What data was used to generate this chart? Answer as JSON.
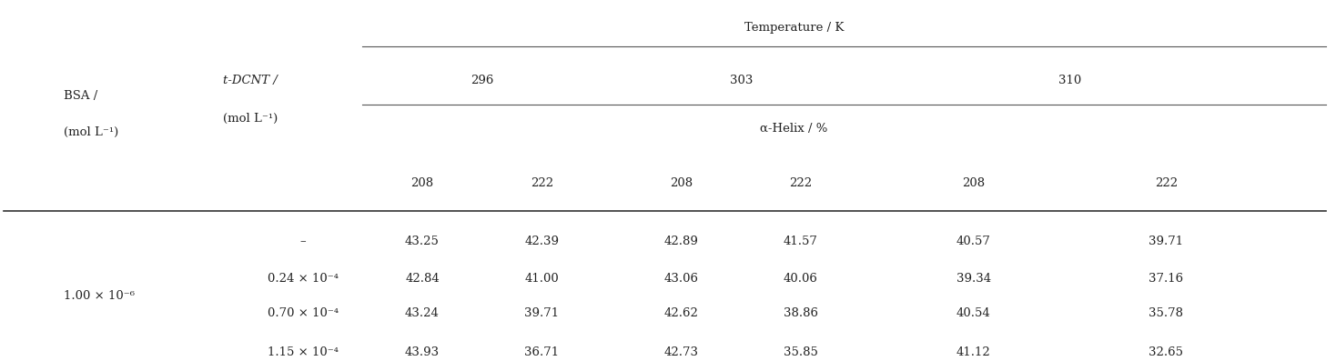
{
  "title": "Temperature / K",
  "temp_labels": [
    "296",
    "303",
    "310"
  ],
  "alpha_helix_label": "α-Helix / %",
  "wl_labels": [
    "208",
    "222",
    "208",
    "222",
    "208",
    "222"
  ],
  "bsa_header_line1": "BSA /",
  "bsa_header_line2": "(mol L⁻¹)",
  "dcnt_header_line1": "t-DCNT /",
  "dcnt_header_line2": "(mol L⁻¹)",
  "bsa_value": "1.00 × 10⁻⁶",
  "rows": [
    {
      "dcnt": "–",
      "values": [
        "43.25",
        "42.39",
        "42.89",
        "41.57",
        "40.57",
        "39.71"
      ]
    },
    {
      "dcnt": "0.24 × 10⁻⁴",
      "values": [
        "42.84",
        "41.00",
        "43.06",
        "40.06",
        "39.34",
        "37.16"
      ]
    },
    {
      "dcnt": "0.70 × 10⁻⁴",
      "values": [
        "43.24",
        "39.71",
        "42.62",
        "38.86",
        "40.54",
        "35.78"
      ]
    },
    {
      "dcnt": "1.15 × 10⁻⁴",
      "values": [
        "43.93",
        "36.71",
        "42.73",
        "35.85",
        "41.12",
        "32.65"
      ]
    }
  ],
  "font_size": 9.5,
  "bg_color": "#ffffff",
  "text_color": "#222222",
  "line_color_thin": "#555555",
  "line_color_thick": "#333333"
}
